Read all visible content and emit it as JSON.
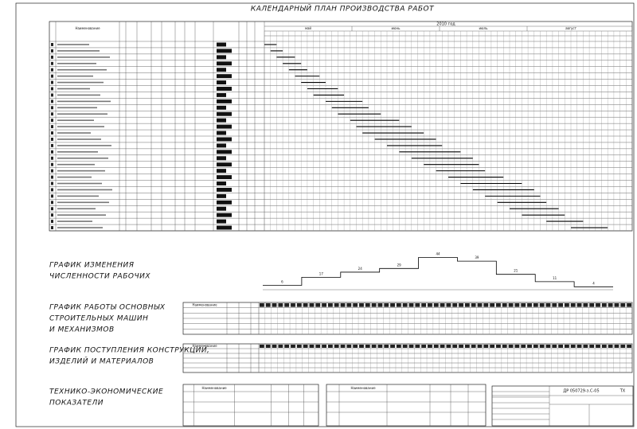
{
  "calendar": {
    "title": "КАЛЕНДАРНЫЙ ПЛАН ПРОИЗВОДСТВА РАБОТ",
    "year": "2010 год",
    "name_header": "Наименование",
    "months": [
      "май",
      "июнь",
      "июль",
      "август"
    ],
    "tasks": [
      [
        0,
        2
      ],
      [
        1,
        2
      ],
      [
        2,
        3
      ],
      [
        3,
        3
      ],
      [
        4,
        3
      ],
      [
        5,
        4
      ],
      [
        6,
        4
      ],
      [
        7,
        5
      ],
      [
        8,
        5
      ],
      [
        10,
        6
      ],
      [
        11,
        6
      ],
      [
        12,
        7
      ],
      [
        14,
        8
      ],
      [
        15,
        9
      ],
      [
        16,
        10
      ],
      [
        18,
        10
      ],
      [
        20,
        9
      ],
      [
        22,
        10
      ],
      [
        24,
        10
      ],
      [
        26,
        9
      ],
      [
        28,
        8
      ],
      [
        30,
        9
      ],
      [
        32,
        10
      ],
      [
        34,
        10
      ],
      [
        36,
        9
      ],
      [
        38,
        8
      ],
      [
        40,
        8
      ],
      [
        42,
        7
      ],
      [
        46,
        6
      ],
      [
        50,
        6
      ]
    ]
  },
  "workers": {
    "title_lines": [
      "ГРАФИК ИЗМЕНЕНИЯ",
      "ЧИСЛЕННОСТИ РАБОЧИХ"
    ],
    "values": [
      6,
      17,
      24,
      29,
      44,
      39,
      21,
      11,
      4
    ],
    "ylim": [
      0,
      50
    ]
  },
  "machines": {
    "title_lines": [
      "ГРАФИК РАБОТЫ ОСНОВНЫХ",
      "СТРОИТЕЛЬНЫХ МАШИН",
      "И МЕХАНИЗМОВ"
    ],
    "name_header": "Наименование"
  },
  "materials": {
    "title_lines": [
      "ГРАФИК ПОСТУПЛЕНИЯ КОНСТРУКЦИЙ,",
      "ИЗДЕЛИЙ И МАТЕРИАЛОВ"
    ],
    "name_header": "Наименование"
  },
  "tep": {
    "title_lines": [
      "ТЕХНИКО-ЭКОНОМИЧЕСКИЕ",
      "ПОКАЗАТЕЛИ"
    ],
    "name_header": "Наименование"
  },
  "stamp": {
    "code": "ДР 050729-з.С-05",
    "mark": "ТХ"
  }
}
